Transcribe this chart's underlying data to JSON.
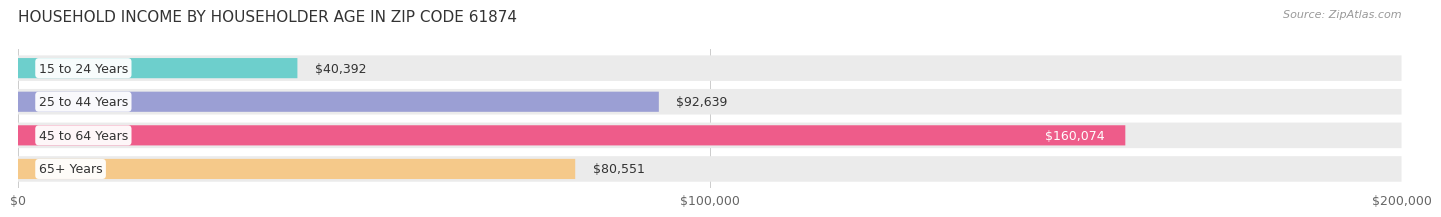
{
  "title": "HOUSEHOLD INCOME BY HOUSEHOLDER AGE IN ZIP CODE 61874",
  "source": "Source: ZipAtlas.com",
  "categories": [
    "15 to 24 Years",
    "25 to 44 Years",
    "45 to 64 Years",
    "65+ Years"
  ],
  "values": [
    40392,
    92639,
    160074,
    80551
  ],
  "bar_colors": [
    "#6DCFCC",
    "#9B9FD4",
    "#EE5C8A",
    "#F5C98A"
  ],
  "background_color": "#ffffff",
  "bar_bg_color": "#ebebeb",
  "xlim": [
    0,
    200000
  ],
  "xticks": [
    0,
    100000,
    200000
  ],
  "xtick_labels": [
    "$0",
    "$100,000",
    "$200,000"
  ],
  "value_labels": [
    "$40,392",
    "$92,639",
    "$160,074",
    "$80,551"
  ],
  "value_label_colors": [
    "#333333",
    "#333333",
    "#ffffff",
    "#333333"
  ],
  "title_fontsize": 11,
  "source_fontsize": 8,
  "label_fontsize": 9,
  "tick_fontsize": 9
}
